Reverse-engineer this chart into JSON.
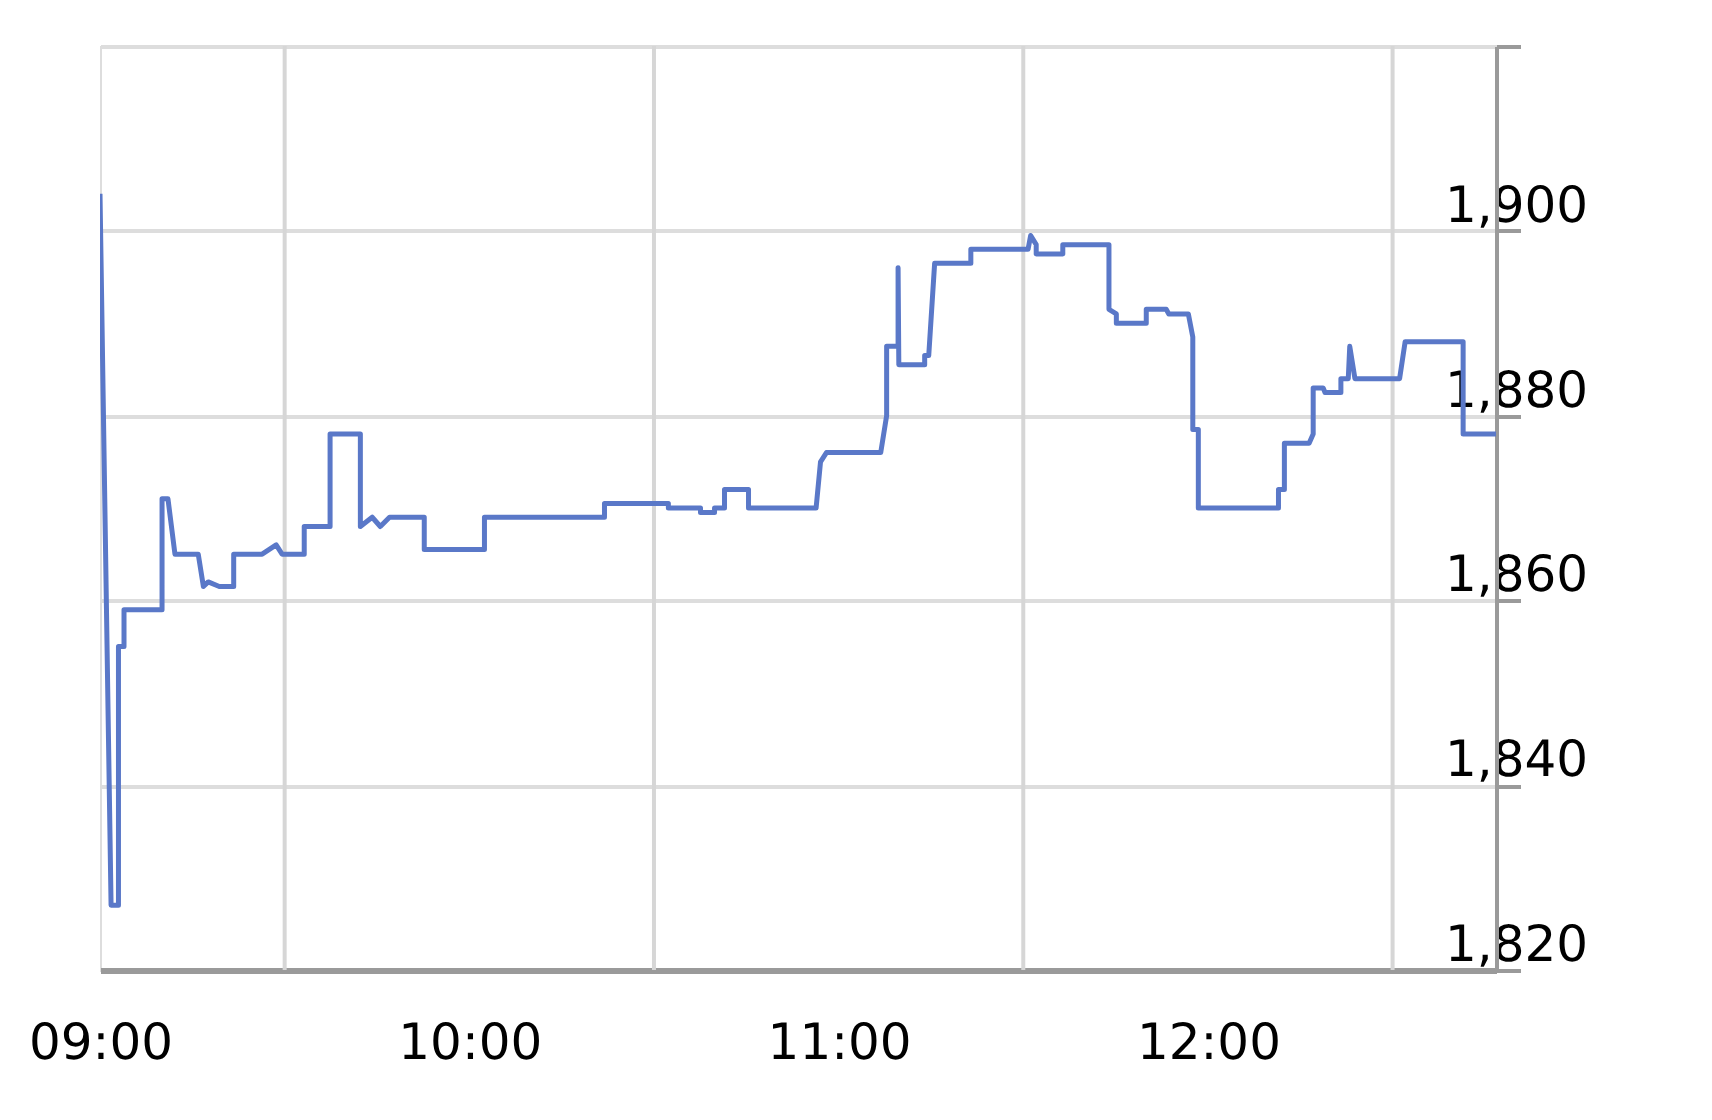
{
  "chart_data": {
    "type": "line",
    "color": "#5a78c8",
    "x": [
      9.0,
      9.03,
      9.05,
      9.05,
      9.065,
      9.065,
      9.168,
      9.168,
      9.184,
      9.203,
      9.266,
      9.28,
      9.293,
      9.323,
      9.362,
      9.362,
      9.439,
      9.477,
      9.493,
      9.553,
      9.553,
      9.623,
      9.623,
      9.705,
      9.705,
      9.737,
      9.759,
      9.784,
      9.878,
      9.878,
      10.041,
      10.041,
      10.366,
      10.366,
      10.539,
      10.539,
      10.626,
      10.626,
      10.664,
      10.664,
      10.691,
      10.691,
      10.756,
      10.756,
      10.939,
      10.951,
      10.967,
      11.114,
      11.13,
      11.13,
      11.161,
      11.161,
      11.163,
      11.233,
      11.233,
      11.244,
      11.26,
      11.358,
      11.358,
      11.513,
      11.52,
      11.535,
      11.535,
      11.607,
      11.607,
      11.732,
      11.732,
      11.752,
      11.752,
      11.833,
      11.833,
      11.887,
      11.894,
      11.947,
      11.959,
      11.959,
      11.974,
      11.974,
      12.191,
      12.191,
      12.207,
      12.207,
      12.274,
      12.285,
      12.285,
      12.312,
      12.317,
      12.36,
      12.36,
      12.38,
      12.384,
      12.398,
      12.519,
      12.534,
      12.691,
      12.691,
      12.78
    ],
    "values": [
      1904,
      1827,
      1827,
      1855,
      1855,
      1859,
      1859,
      1871,
      1871,
      1865,
      1865,
      1861.5,
      1862,
      1861.5,
      1861.5,
      1865,
      1865,
      1866,
      1865,
      1865,
      1868,
      1868,
      1878,
      1878,
      1868,
      1869,
      1868,
      1869,
      1869,
      1865.5,
      1865.5,
      1869,
      1869,
      1870.5,
      1870.5,
      1870,
      1870,
      1869.5,
      1869.5,
      1870,
      1870,
      1872,
      1872,
      1870,
      1870,
      1875,
      1876,
      1876,
      1880,
      1887.5,
      1887.5,
      1896,
      1885.5,
      1885.5,
      1886.5,
      1886.5,
      1896.5,
      1896.5,
      1898,
      1898,
      1899.5,
      1898.5,
      1897.5,
      1897.5,
      1898.5,
      1898.5,
      1891.5,
      1891,
      1890,
      1890,
      1891.5,
      1891.5,
      1891,
      1891,
      1888.5,
      1878.5,
      1878.5,
      1870,
      1870,
      1872,
      1872,
      1877,
      1877,
      1878,
      1883,
      1883,
      1882.5,
      1882.5,
      1884,
      1884,
      1887.5,
      1884,
      1884,
      1888,
      1888,
      1878,
      1878
    ],
    "xlim": [
      9.0,
      12.78
    ],
    "xticks": [
      {
        "value": 9,
        "label": "09:00"
      },
      {
        "value": 9.5,
        "label": null
      },
      {
        "value": 10,
        "label": "10:00"
      },
      {
        "value": 10.5,
        "label": null
      },
      {
        "value": 11,
        "label": "11:00"
      },
      {
        "value": 11.5,
        "label": null
      },
      {
        "value": 12,
        "label": "12:00"
      },
      {
        "value": 12.5,
        "label": null
      }
    ],
    "ylim": [
      1820,
      1920
    ],
    "yticks": [
      {
        "value": 1820,
        "label": "1,820"
      },
      {
        "value": 1840,
        "label": "1,840"
      },
      {
        "value": 1860,
        "label": "1,860"
      },
      {
        "value": 1880,
        "label": "1,880"
      },
      {
        "value": 1900,
        "label": "1,900"
      },
      {
        "value": 1920,
        "label": null
      }
    ],
    "grid": true
  }
}
